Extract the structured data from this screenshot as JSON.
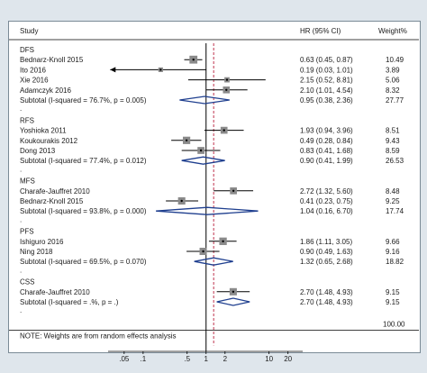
{
  "chart_data": {
    "type": "forest",
    "scale": "log",
    "header": {
      "study": "Study",
      "hr": "HR (95% CI)",
      "weight": "Weight%"
    },
    "xticks": [
      ".05",
      ".1",
      ".5",
      "1",
      "2",
      "10",
      "20"
    ],
    "xtick_values": [
      0.05,
      0.1,
      0.5,
      1,
      2,
      10,
      20
    ],
    "xlim": [
      0.02,
      30
    ],
    "null_line": 1,
    "pooled_line": 1.32,
    "groups": [
      {
        "name": "DFS",
        "studies": [
          {
            "name": "Bednarz-Knoll 2015",
            "hr": 0.63,
            "lo": 0.45,
            "hi": 0.87,
            "text": "0.63 (0.45, 0.87)",
            "weight": "10.49"
          },
          {
            "name": "Ito 2016",
            "hr": 0.19,
            "lo": 0.03,
            "hi": 1.01,
            "text": "0.19 (0.03, 1.01)",
            "weight": "3.89"
          },
          {
            "name": "Xie 2016",
            "hr": 2.15,
            "lo": 0.52,
            "hi": 8.81,
            "text": "2.15 (0.52, 8.81)",
            "weight": "5.06"
          },
          {
            "name": "Adamczyk 2016",
            "hr": 2.1,
            "lo": 1.01,
            "hi": 4.54,
            "text": "2.10 (1.01, 4.54)",
            "weight": "8.32"
          }
        ],
        "subtotal": {
          "label": "Subtotal  (I-squared = 76.7%, p = 0.005)",
          "hr": 0.95,
          "lo": 0.38,
          "hi": 2.36,
          "text": "0.95 (0.38, 2.36)",
          "weight": "27.77"
        }
      },
      {
        "name": "RFS",
        "studies": [
          {
            "name": "Yoshioka 2011",
            "hr": 1.93,
            "lo": 0.94,
            "hi": 3.96,
            "text": "1.93 (0.94, 3.96)",
            "weight": "8.51"
          },
          {
            "name": "Koukourakis 2012",
            "hr": 0.49,
            "lo": 0.28,
            "hi": 0.84,
            "text": "0.49 (0.28, 0.84)",
            "weight": "9.43"
          },
          {
            "name": "Dong 2013",
            "hr": 0.83,
            "lo": 0.41,
            "hi": 1.68,
            "text": "0.83 (0.41, 1.68)",
            "weight": "8.59"
          }
        ],
        "subtotal": {
          "label": "Subtotal  (I-squared = 77.4%, p = 0.012)",
          "hr": 0.9,
          "lo": 0.41,
          "hi": 1.99,
          "text": "0.90 (0.41, 1.99)",
          "weight": "26.53"
        }
      },
      {
        "name": "MFS",
        "studies": [
          {
            "name": "Charafe-Jauffret 2010",
            "hr": 2.72,
            "lo": 1.32,
            "hi": 5.6,
            "text": "2.72 (1.32, 5.60)",
            "weight": "8.48"
          },
          {
            "name": "Bednarz-Knoll 2015",
            "hr": 0.41,
            "lo": 0.23,
            "hi": 0.75,
            "text": "0.41 (0.23, 0.75)",
            "weight": "9.25"
          }
        ],
        "subtotal": {
          "label": "Subtotal  (I-squared = 93.8%, p = 0.000)",
          "hr": 1.04,
          "lo": 0.16,
          "hi": 6.7,
          "text": "1.04 (0.16, 6.70)",
          "weight": "17.74"
        }
      },
      {
        "name": "PFS",
        "studies": [
          {
            "name": "Ishiguro 2016",
            "hr": 1.86,
            "lo": 1.11,
            "hi": 3.05,
            "text": "1.86 (1.11, 3.05)",
            "weight": "9.66"
          },
          {
            "name": "Ning 2018",
            "hr": 0.9,
            "lo": 0.49,
            "hi": 1.63,
            "text": "0.90 (0.49, 1.63)",
            "weight": "9.16"
          }
        ],
        "subtotal": {
          "label": "Subtotal  (I-squared = 69.5%, p = 0.070)",
          "hr": 1.32,
          "lo": 0.65,
          "hi": 2.68,
          "text": "1.32 (0.65, 2.68)",
          "weight": "18.82"
        }
      },
      {
        "name": "CSS",
        "studies": [
          {
            "name": "Charafe-Jauffret 2010",
            "hr": 2.7,
            "lo": 1.48,
            "hi": 4.93,
            "text": "2.70 (1.48, 4.93)",
            "weight": "9.15"
          }
        ],
        "subtotal": {
          "label": "Subtotal  (I-squared = .%, p = .)",
          "hr": 2.7,
          "lo": 1.48,
          "hi": 4.93,
          "text": "2.70 (1.48, 4.93)",
          "weight": "9.15"
        }
      }
    ],
    "overall_weight": "100.00",
    "note": "NOTE: Weights are from random effects analysis",
    "colors": {
      "background": "#dfe6ec",
      "panel": "#ffffff",
      "diamond": "#1f3f8f",
      "null_line": "#000000",
      "pooled_line": "#c0334d",
      "ci": "#000000",
      "box": "#8a8a8a"
    }
  }
}
